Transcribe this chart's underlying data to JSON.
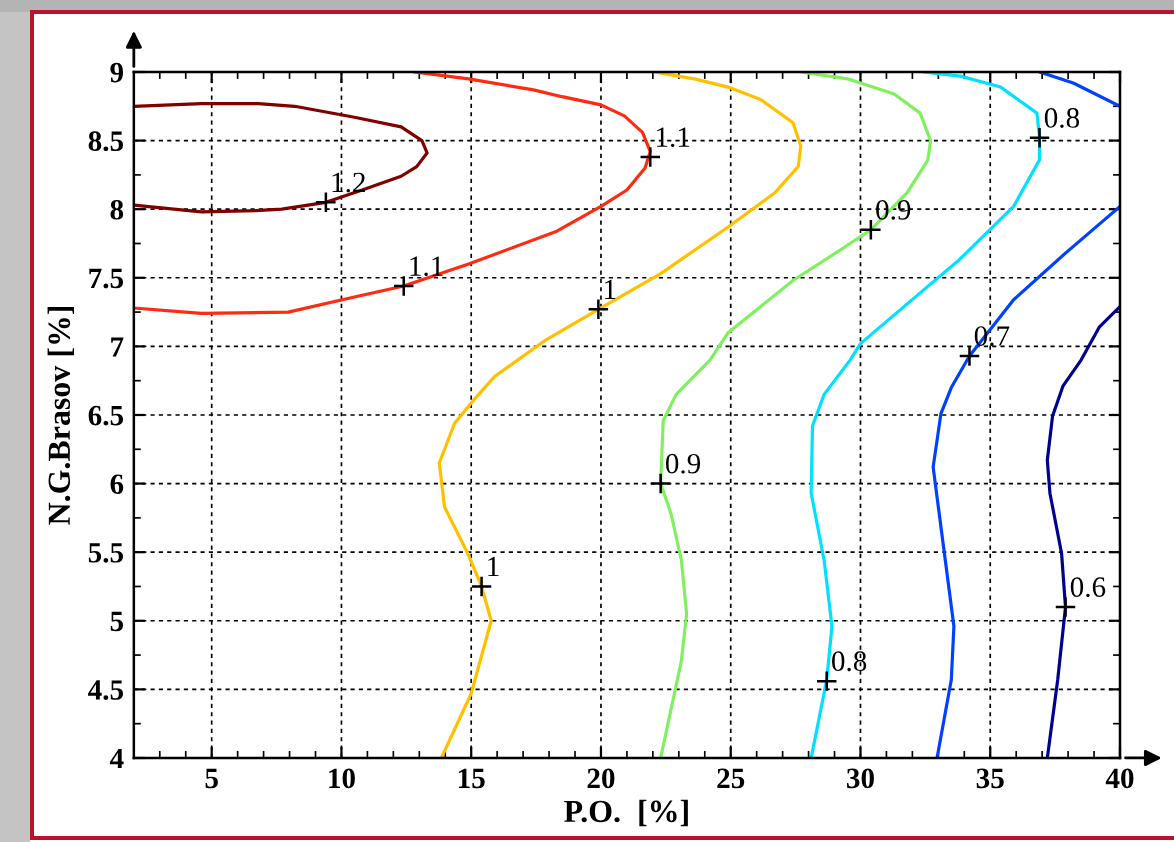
{
  "chart_data": {
    "type": "line",
    "xlabel": "P.O.  [%]",
    "ylabel": "N.G.Brasov [%]",
    "xlim": [
      2,
      40
    ],
    "ylim": [
      4,
      9
    ],
    "xticks": [
      5,
      10,
      15,
      20,
      25,
      30,
      35,
      40
    ],
    "yticks": [
      4,
      4.5,
      5,
      5.5,
      6,
      6.5,
      7,
      7.5,
      8,
      8.5,
      9
    ],
    "grid": true,
    "series": [
      {
        "color": "#800000",
        "x": [
          2,
          4.6,
          6.8,
          8.2,
          10.5,
          12.3,
          13.1,
          13.3,
          12.9,
          12.3,
          10.8,
          9.4,
          7.7,
          6.7,
          4.6,
          2
        ],
        "values": [
          8.75,
          8.77,
          8.77,
          8.75,
          8.67,
          8.6,
          8.5,
          8.41,
          8.31,
          8.24,
          8.14,
          8.05,
          8.0,
          7.99,
          7.98,
          8.03
        ]
      },
      {
        "color": "#ff2a10",
        "x": [
          2,
          4.6,
          7.95,
          10.5,
          12.4,
          14.9,
          18.3,
          20,
          21,
          21.7,
          21.9,
          21.6,
          20.9,
          20,
          18.5,
          17.4,
          14.9,
          12.8
        ],
        "values": [
          7.28,
          7.24,
          7.25,
          7.36,
          7.44,
          7.6,
          7.84,
          8.02,
          8.14,
          8.3,
          8.42,
          8.56,
          8.68,
          8.76,
          8.82,
          8.87,
          8.95,
          9.0
        ]
      },
      {
        "color": "#ffc000",
        "x": [
          13.85,
          15,
          15.77,
          15.4,
          14.87,
          13.97,
          13.77,
          14.36,
          15.1,
          15.9,
          17.9,
          19.9,
          22.3,
          24.9,
          26.7,
          27.6,
          27.7,
          27.4,
          26.15,
          24.9,
          23.6,
          22.05
        ],
        "values": [
          4.0,
          4.47,
          5.0,
          5.25,
          5.49,
          5.83,
          6.15,
          6.44,
          6.61,
          6.78,
          7.05,
          7.27,
          7.53,
          7.87,
          8.12,
          8.31,
          8.46,
          8.63,
          8.8,
          8.89,
          8.95,
          9.0
        ]
      },
      {
        "color": "#80f060",
        "x": [
          22.3,
          23.1,
          23.3,
          23.1,
          22.7,
          22.3,
          22.4,
          22.9,
          24.2,
          24.9,
          27.4,
          29.2,
          30.4,
          31.8,
          32.6,
          32.7,
          32.3,
          31.3,
          29.5,
          27.7
        ],
        "values": [
          4.0,
          4.71,
          5.05,
          5.44,
          5.78,
          6.0,
          6.46,
          6.65,
          6.9,
          7.1,
          7.48,
          7.7,
          7.85,
          8.12,
          8.36,
          8.5,
          8.7,
          8.84,
          8.95,
          9.0
        ]
      },
      {
        "color": "#00e0ff",
        "x": [
          28.1,
          28.7,
          28.9,
          28.6,
          28.1,
          28.15,
          28.6,
          29.6,
          30,
          32.3,
          33.8,
          35.9,
          36.9,
          36.9,
          36.8,
          35.4,
          33.85,
          32.4
        ],
        "values": [
          4.0,
          4.57,
          4.96,
          5.44,
          5.93,
          6.42,
          6.65,
          6.9,
          7.02,
          7.39,
          7.63,
          8.02,
          8.36,
          8.52,
          8.7,
          8.89,
          8.97,
          9.0
        ]
      },
      {
        "color": "#0040ff",
        "x": [
          32.95,
          33.5,
          33.6,
          33.2,
          32.8,
          33.1,
          33.5,
          34.2,
          35.9,
          37.9,
          40,
          null,
          36.9,
          38.2,
          40
        ],
        "values": [
          4.0,
          4.57,
          4.96,
          5.54,
          6.12,
          6.51,
          6.7,
          6.93,
          7.34,
          7.68,
          8.02,
          null,
          9.0,
          8.92,
          8.75
        ]
      },
      {
        "color": "#000090",
        "x": [
          37.2,
          37.6,
          37.9,
          37.75,
          37.3,
          37.2,
          37.4,
          37.8,
          38.5,
          39.2,
          40
        ],
        "values": [
          4.0,
          4.57,
          5.1,
          5.49,
          5.93,
          6.17,
          6.49,
          6.71,
          6.9,
          7.14,
          7.29
        ]
      }
    ],
    "annotations": [
      {
        "text": "1.2",
        "x": 9.4,
        "y": 8.05
      },
      {
        "text": "1.1",
        "x": 12.4,
        "y": 7.44
      },
      {
        "text": "1.1",
        "x": 21.9,
        "y": 8.38
      },
      {
        "text": "1",
        "x": 19.9,
        "y": 7.27
      },
      {
        "text": "1",
        "x": 15.4,
        "y": 5.25
      },
      {
        "text": "0.9",
        "x": 30.4,
        "y": 7.85
      },
      {
        "text": "0.9",
        "x": 22.3,
        "y": 6.0
      },
      {
        "text": "0.8",
        "x": 36.9,
        "y": 8.52
      },
      {
        "text": "0.8",
        "x": 28.7,
        "y": 4.56
      },
      {
        "text": "0.7",
        "x": 34.2,
        "y": 6.93
      },
      {
        "text": "0.6",
        "x": 37.9,
        "y": 5.1
      }
    ]
  }
}
